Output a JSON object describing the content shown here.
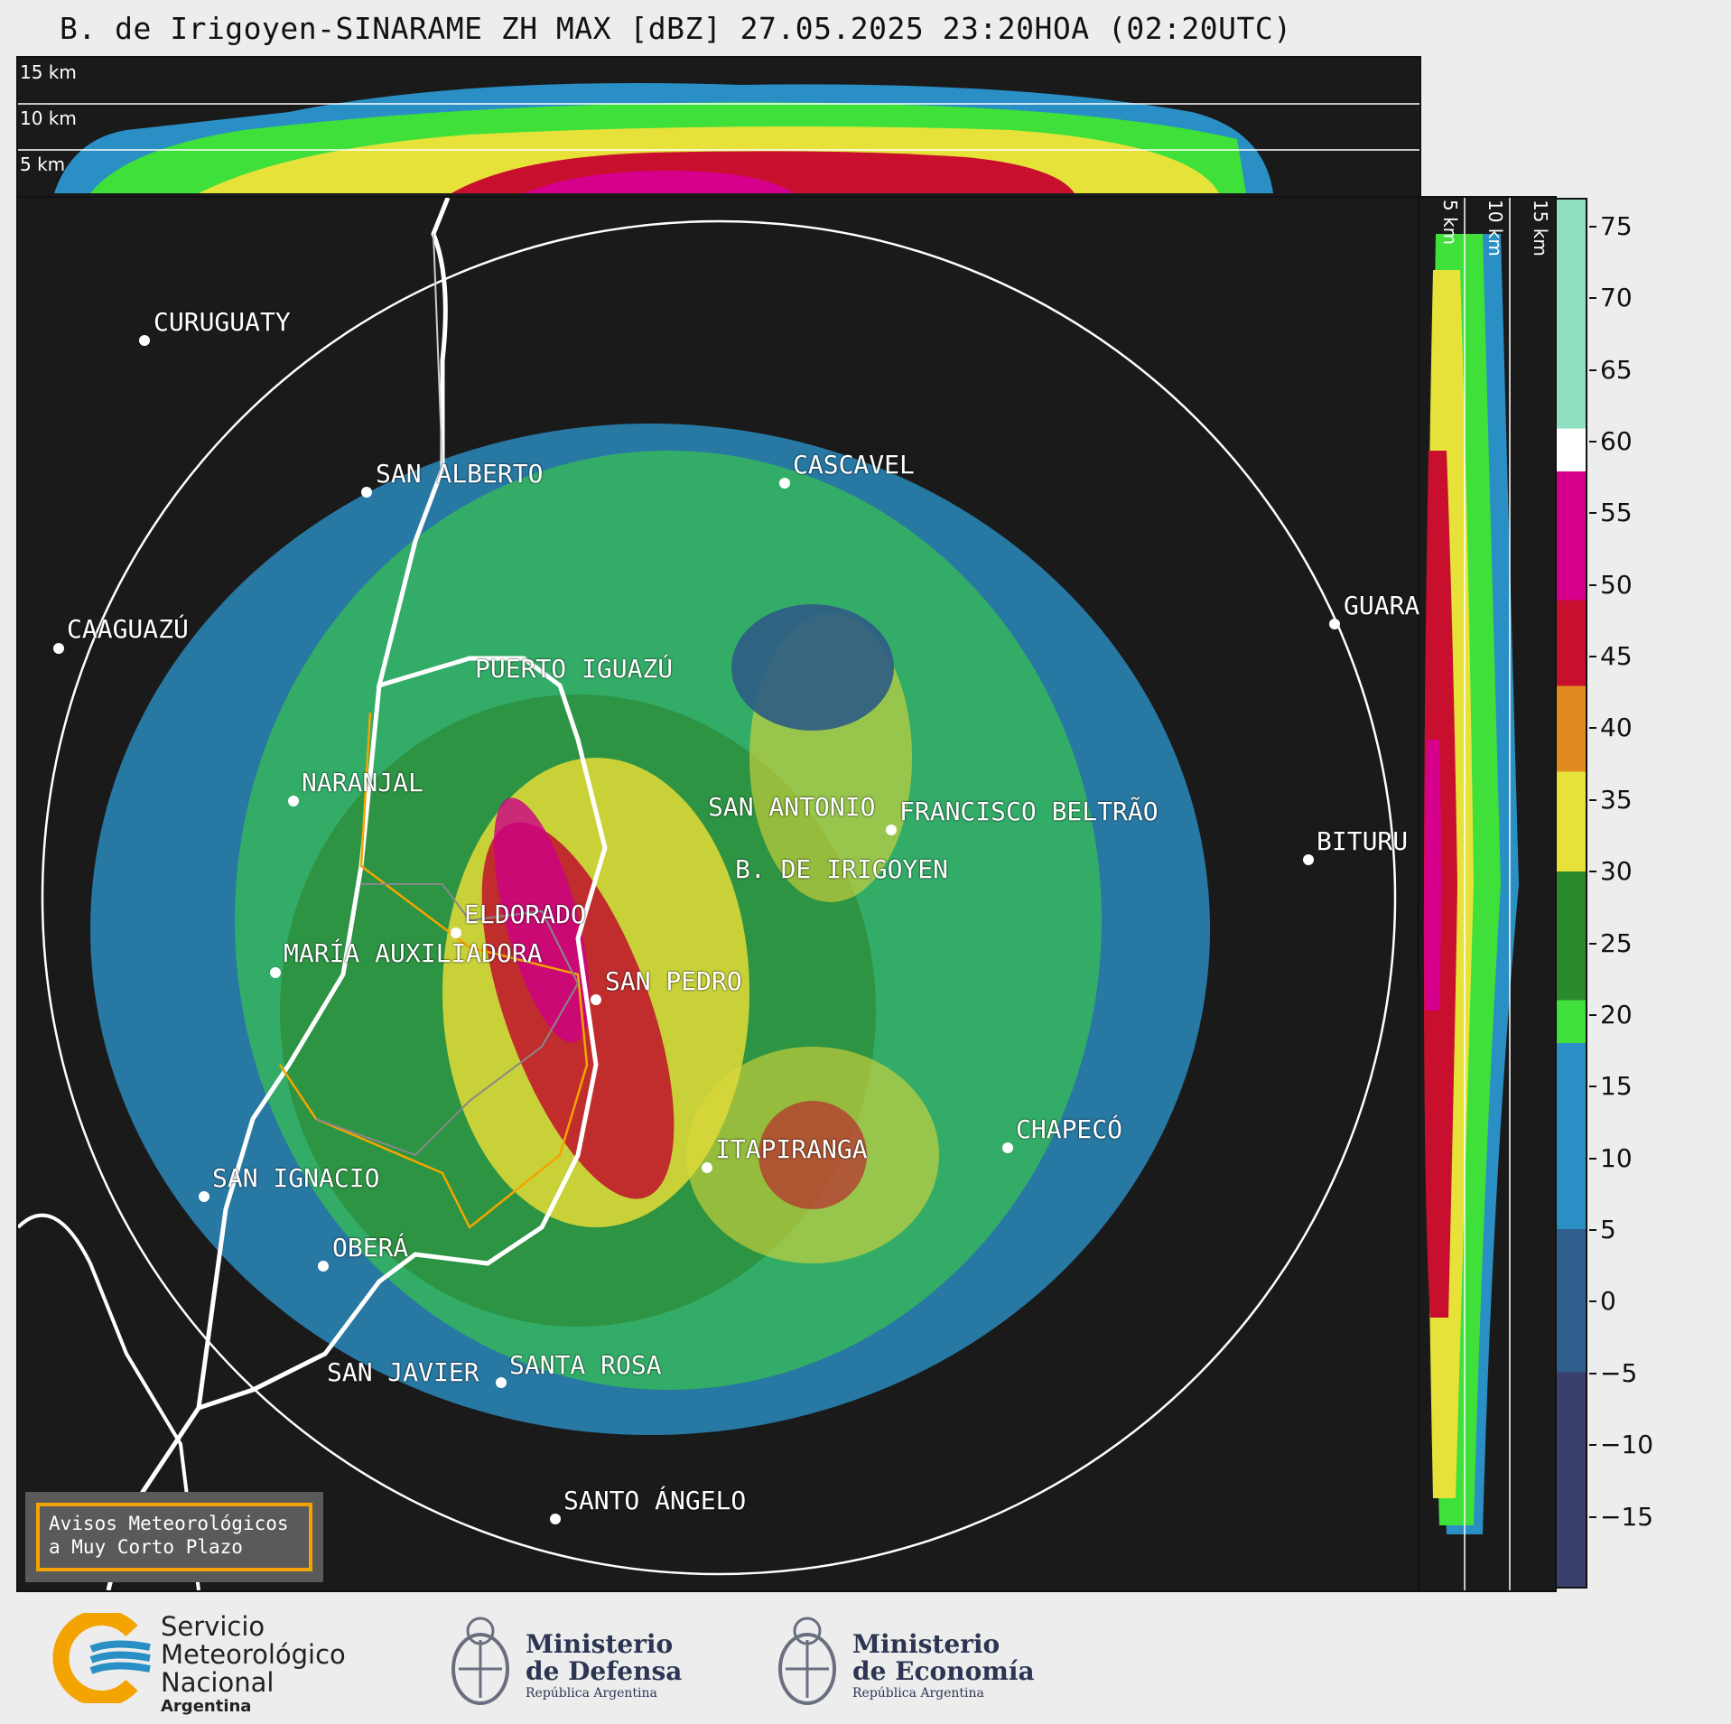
{
  "title": "B. de Irigoyen-SINARAME ZH MAX [dBZ] 27.05.2025 23:20HOA (02:20UTC)",
  "top_panel_labels": [
    "15 km",
    "10 km",
    "5 km"
  ],
  "side_panel_labels": [
    "5 km",
    "10 km",
    "15 km"
  ],
  "cities": [
    {
      "id": "curuguaty",
      "label": "CURUGUATY"
    },
    {
      "id": "san-alberto",
      "label": "SAN ALBERTO"
    },
    {
      "id": "cascavel",
      "label": "CASCAVEL"
    },
    {
      "id": "caaguazu",
      "label": "CAAGUAZÚ"
    },
    {
      "id": "guarapuava",
      "label": "GUARA"
    },
    {
      "id": "puerto-iguazu",
      "label": "PUERTO IGUAZÚ"
    },
    {
      "id": "naranjal",
      "label": "NARANJAL"
    },
    {
      "id": "san-antonio",
      "label": "SAN ANTONIO"
    },
    {
      "id": "francisco-beltrao",
      "label": "FRANCISCO BELTRÃO"
    },
    {
      "id": "bituruna",
      "label": "BITURU"
    },
    {
      "id": "b-de-irigoyen",
      "label": "B. DE IRIGOYEN"
    },
    {
      "id": "eldorado",
      "label": "ELDORADO"
    },
    {
      "id": "maria-auxiliadora",
      "label": "MARÍA AUXILIADORA"
    },
    {
      "id": "san-pedro",
      "label": "SAN PEDRO"
    },
    {
      "id": "chapeco",
      "label": "CHAPECÓ"
    },
    {
      "id": "itapiranga",
      "label": "ITAPIRANGA"
    },
    {
      "id": "san-ignacio",
      "label": "SAN IGNACIO"
    },
    {
      "id": "obera",
      "label": "OBERÁ"
    },
    {
      "id": "san-javier",
      "label": "SAN JAVIER"
    },
    {
      "id": "santa-rosa",
      "label": "SANTA ROSA"
    },
    {
      "id": "santo-angelo",
      "label": "SANTO ÁNGELO"
    }
  ],
  "colorbar": {
    "unit": "dBZ",
    "min": -20,
    "max": 77,
    "tick_labels": [
      "75",
      "70",
      "65",
      "60",
      "55",
      "50",
      "45",
      "40",
      "35",
      "30",
      "25",
      "20",
      "15",
      "10",
      "5",
      "0",
      "−5",
      "−10",
      "−15"
    ],
    "stops": [
      {
        "from": -20,
        "to": -5,
        "color": "#3a3f6b"
      },
      {
        "from": -5,
        "to": 5,
        "color": "#2f5f8c"
      },
      {
        "from": 5,
        "to": 18,
        "color": "#2a8fc4"
      },
      {
        "from": 18,
        "to": 21,
        "color": "#3fe03a"
      },
      {
        "from": 21,
        "to": 30,
        "color": "#2b8a2b"
      },
      {
        "from": 30,
        "to": 37,
        "color": "#e6e23a"
      },
      {
        "from": 37,
        "to": 43,
        "color": "#e08a20"
      },
      {
        "from": 43,
        "to": 49,
        "color": "#c8102e"
      },
      {
        "from": 49,
        "to": 58,
        "color": "#d6008c"
      },
      {
        "from": 58,
        "to": 61,
        "color": "#ffffff"
      },
      {
        "from": 61,
        "to": 77,
        "color": "#8fe0c0"
      }
    ]
  },
  "warning_box": {
    "line1": "Avisos Meteorológicos",
    "line2": "a Muy Corto Plazo"
  },
  "logos": {
    "smn": {
      "line1": "Servicio",
      "line2": "Meteorológico",
      "line3": "Nacional",
      "country": "Argentina"
    },
    "defensa": {
      "line1": "Ministerio",
      "line2": "de Defensa",
      "sub": "República Argentina"
    },
    "economia": {
      "line1": "Ministerio",
      "line2": "de Economía",
      "sub": "República Argentina"
    }
  }
}
